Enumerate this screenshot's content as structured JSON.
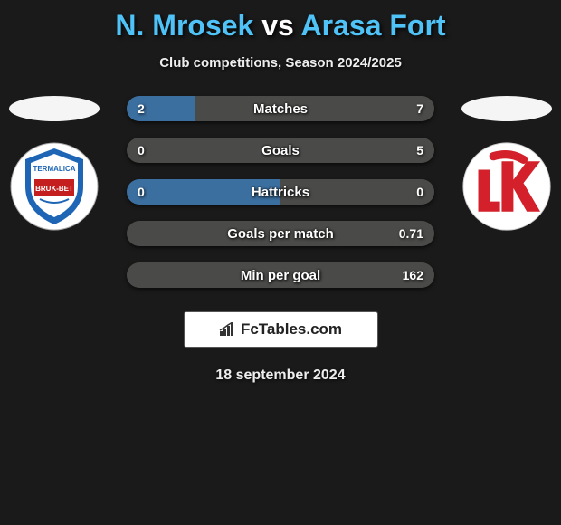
{
  "header": {
    "player1": "N. Mrosek",
    "vs": "vs",
    "player2": "Arasa Fort",
    "title_color": "#4fc3f7",
    "vs_color": "#ffffff"
  },
  "subtitle": "Club competitions, Season 2024/2025",
  "team_left": {
    "oval_color": "#f5f5f5",
    "crest_bg": "#ffffff",
    "crest_accent1": "#1e66b5",
    "crest_accent2": "#c41e1e",
    "crest_text1": "TERMALICA",
    "crest_text2": "BRUK-BET"
  },
  "team_right": {
    "oval_color": "#f5f5f5",
    "crest_bg": "#ffffff",
    "crest_accent": "#d3202a"
  },
  "stats": [
    {
      "label": "Matches",
      "left_value": "2",
      "right_value": "7",
      "left_pct": 22,
      "right_pct": 78
    },
    {
      "label": "Goals",
      "left_value": "0",
      "right_value": "5",
      "left_pct": 0,
      "right_pct": 100
    },
    {
      "label": "Hattricks",
      "left_value": "0",
      "right_value": "0",
      "left_pct": 50,
      "right_pct": 50
    },
    {
      "label": "Goals per match",
      "left_value": "",
      "right_value": "0.71",
      "left_pct": 0,
      "right_pct": 100
    },
    {
      "label": "Min per goal",
      "left_value": "",
      "right_value": "162",
      "left_pct": 0,
      "right_pct": 100
    }
  ],
  "bar_colors": {
    "left": "#3b6fa0",
    "right": "#4a4a48",
    "divider": "#2a2a2a"
  },
  "watermark": {
    "text": "FcTables.com"
  },
  "date": "18 september 2024",
  "background": "#1a1a1a"
}
